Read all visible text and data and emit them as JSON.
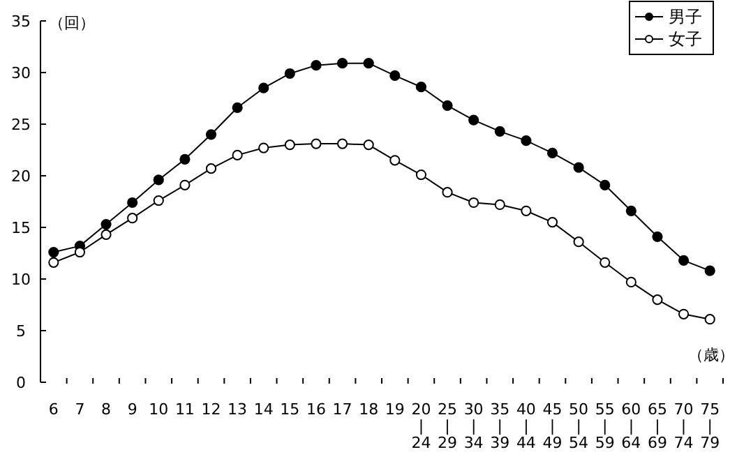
{
  "chart_data": {
    "type": "line",
    "ylabel": "（回）",
    "xlabel": "（歳）",
    "categories": [
      "6",
      "7",
      "8",
      "9",
      "10",
      "11",
      "12",
      "13",
      "14",
      "15",
      "16",
      "17",
      "18",
      "19",
      "20\n|\n24",
      "25\n|\n29",
      "30\n|\n34",
      "35\n|\n39",
      "40\n|\n44",
      "45\n|\n49",
      "50\n|\n54",
      "55\n|\n59",
      "60\n|\n64",
      "65\n|\n69",
      "70\n|\n74",
      "75\n|\n79"
    ],
    "series": [
      {
        "name": "男子",
        "color": "#000000",
        "values": [
          12.6,
          13.2,
          15.3,
          17.4,
          19.6,
          21.6,
          24.0,
          26.6,
          28.5,
          29.9,
          30.7,
          30.9,
          30.9,
          29.7,
          28.6,
          26.8,
          25.4,
          24.3,
          23.4,
          22.2,
          20.8,
          19.1,
          16.6,
          14.1,
          11.8,
          10.8
        ]
      },
      {
        "name": "女子",
        "color": "#000000",
        "values": [
          11.6,
          12.6,
          14.3,
          15.9,
          17.6,
          19.1,
          20.7,
          22.0,
          22.7,
          23.0,
          23.1,
          23.1,
          23.0,
          21.5,
          20.1,
          18.4,
          17.4,
          17.2,
          16.6,
          15.5,
          13.6,
          11.6,
          9.7,
          8.0,
          6.6,
          6.1
        ]
      }
    ],
    "ylim": [
      0,
      35
    ],
    "yticks": [
      0,
      5,
      10,
      15,
      20,
      25,
      30,
      35
    ],
    "marker": "circle",
    "legend": "top right"
  }
}
